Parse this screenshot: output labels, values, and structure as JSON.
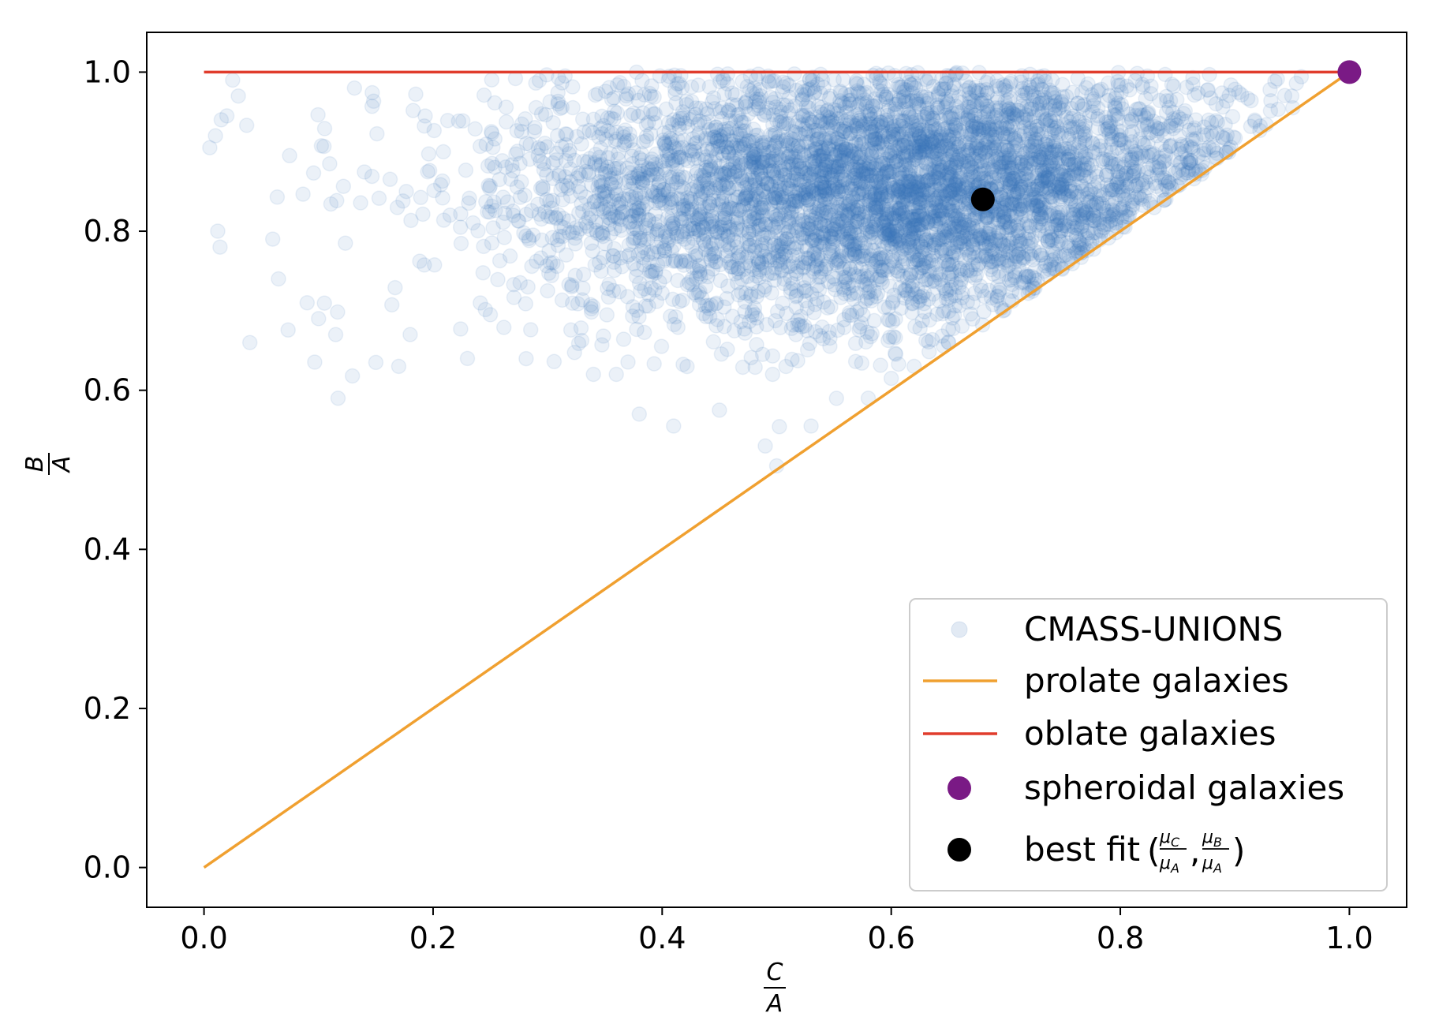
{
  "chart_data": {
    "type": "scatter",
    "xlabel": {
      "numerator": "C",
      "denominator": "A"
    },
    "ylabel": {
      "numerator": "B",
      "denominator": "A"
    },
    "xlim": [
      -0.05,
      1.05
    ],
    "ylim": [
      -0.05,
      1.05
    ],
    "xticks": [
      "0.0",
      "0.2",
      "0.4",
      "0.6",
      "0.8",
      "1.0"
    ],
    "yticks": [
      "0.0",
      "0.2",
      "0.4",
      "0.6",
      "0.8",
      "1.0"
    ],
    "grid": false,
    "legend_position": "lower-right",
    "series": [
      {
        "name": "CMASS-UNIONS",
        "kind": "scatter",
        "color": "#3a74b8",
        "alpha": 0.1,
        "description_counts": "many thousands of points; constrained to C/A <= B/A <= 1; densest near C/A 0.55-0.8, B/A 0.75-0.95",
        "sample_points": [
          [
            0.005,
            0.905
          ],
          [
            0.01,
            0.92
          ],
          [
            0.015,
            0.94
          ],
          [
            0.02,
            0.945
          ],
          [
            0.025,
            0.99
          ],
          [
            0.03,
            0.97
          ],
          [
            0.012,
            0.8
          ],
          [
            0.014,
            0.78
          ],
          [
            0.04,
            0.66
          ],
          [
            0.06,
            0.79
          ],
          [
            0.065,
            0.74
          ],
          [
            0.09,
            0.71
          ],
          [
            0.1,
            0.69
          ],
          [
            0.115,
            0.67
          ],
          [
            0.117,
            0.59
          ],
          [
            0.15,
            0.635
          ],
          [
            0.17,
            0.63
          ],
          [
            0.18,
            0.67
          ],
          [
            0.23,
            0.64
          ],
          [
            0.25,
            0.695
          ],
          [
            0.45,
            0.575
          ],
          [
            0.49,
            0.53
          ],
          [
            0.5,
            0.505
          ],
          [
            0.53,
            0.555
          ],
          [
            0.41,
            0.555
          ],
          [
            0.38,
            0.57
          ],
          [
            0.34,
            0.62
          ],
          [
            0.36,
            0.62
          ],
          [
            0.58,
            0.59
          ],
          [
            0.6,
            0.615
          ],
          [
            0.62,
            0.63
          ],
          [
            0.65,
            0.66
          ]
        ]
      },
      {
        "name": "prolate galaxies",
        "kind": "line",
        "color": "#f0a030",
        "x": [
          0.0,
          1.0
        ],
        "y": [
          0.0,
          1.0
        ]
      },
      {
        "name": "oblate galaxies",
        "kind": "line",
        "color": "#e03c2c",
        "x": [
          0.0,
          1.0
        ],
        "y": [
          1.0,
          1.0
        ]
      },
      {
        "name": "spheroidal galaxies",
        "kind": "point",
        "color": "#7a1a85",
        "x": [
          1.0
        ],
        "y": [
          1.0
        ]
      },
      {
        "name": "best fit",
        "kind": "point",
        "color": "#000000",
        "x": [
          0.68
        ],
        "y": [
          0.84
        ]
      }
    ],
    "legend": {
      "entries": [
        {
          "label": "CMASS-UNIONS"
        },
        {
          "label": "prolate galaxies"
        },
        {
          "label": "oblate galaxies"
        },
        {
          "label": "spheroidal galaxies"
        },
        {
          "label": "best fit",
          "math": {
            "mu": "μ",
            "c": "C",
            "b": "B",
            "a": "A"
          }
        }
      ]
    }
  }
}
